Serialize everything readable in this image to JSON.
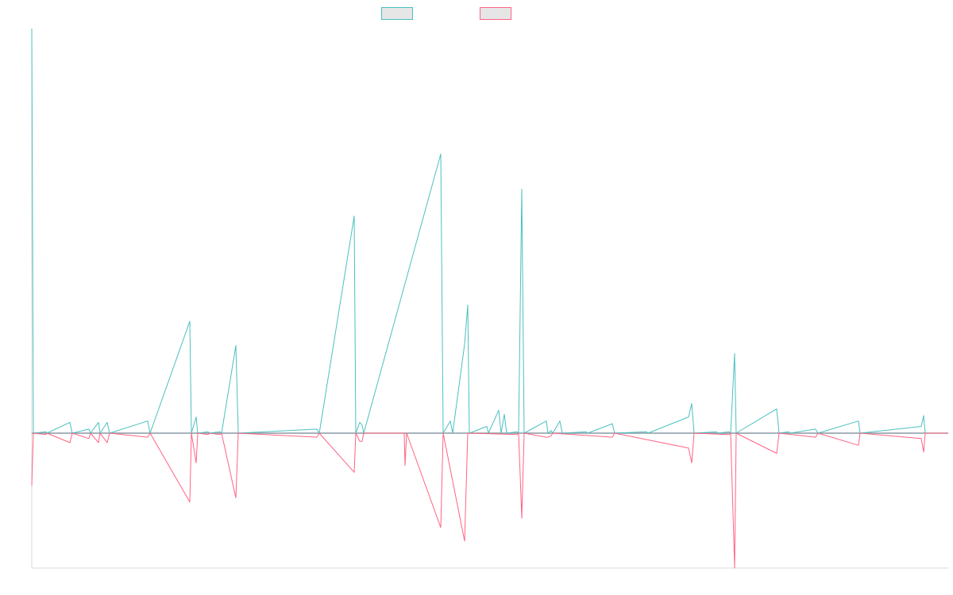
{
  "chart_data": {
    "type": "line",
    "title": "",
    "xlabel": "",
    "ylabel": "",
    "xlim": [
      0,
      1154
    ],
    "ylim": [
      -100,
      300
    ],
    "grid": false,
    "legend_position": "top-center",
    "colors": {
      "series_a": "#4bc0c0",
      "series_b": "#ff6384",
      "axis": "#d9d9d9",
      "baseline": "#8a9aa3"
    },
    "series": [
      {
        "name": "",
        "color": "#4bc0c0",
        "points": [
          [
            0,
            300
          ],
          [
            2,
            0
          ],
          [
            18,
            1
          ],
          [
            19,
            0
          ],
          [
            48,
            8
          ],
          [
            51,
            0
          ],
          [
            72,
            3
          ],
          [
            74,
            0
          ],
          [
            84,
            8
          ],
          [
            86,
            0
          ],
          [
            95,
            8
          ],
          [
            98,
            0
          ],
          [
            146,
            9
          ],
          [
            149,
            0
          ],
          [
            199,
            83
          ],
          [
            201,
            0
          ],
          [
            207,
            12
          ],
          [
            209,
            0
          ],
          [
            222,
            1
          ],
          [
            224,
            0
          ],
          [
            237,
            1
          ],
          [
            239,
            0
          ],
          [
            257,
            65
          ],
          [
            260,
            0
          ],
          [
            359,
            3
          ],
          [
            362,
            0
          ],
          [
            406,
            161
          ],
          [
            408,
            0
          ],
          [
            413,
            8
          ],
          [
            416,
            6
          ],
          [
            418,
            0
          ],
          [
            515,
            207
          ],
          [
            518,
            0
          ],
          [
            527,
            9
          ],
          [
            530,
            0
          ],
          [
            545,
            66
          ],
          [
            549,
            95
          ],
          [
            551,
            0
          ],
          [
            573,
            5
          ],
          [
            575,
            0
          ],
          [
            588,
            17
          ],
          [
            591,
            0
          ],
          [
            595,
            14
          ],
          [
            598,
            0
          ],
          [
            611,
            1
          ],
          [
            613,
            0
          ],
          [
            617,
            181
          ],
          [
            620,
            0
          ],
          [
            648,
            9
          ],
          [
            650,
            0
          ],
          [
            654,
            2
          ],
          [
            656,
            0
          ],
          [
            665,
            9
          ],
          [
            668,
            0
          ],
          [
            698,
            1
          ],
          [
            700,
            0
          ],
          [
            731,
            7
          ],
          [
            734,
            0
          ],
          [
            774,
            1
          ],
          [
            776,
            0
          ],
          [
            827,
            12
          ],
          [
            831,
            22
          ],
          [
            834,
            0
          ],
          [
            862,
            1
          ],
          [
            864,
            0
          ],
          [
            878,
            1
          ],
          [
            880,
            0
          ],
          [
            885,
            59
          ],
          [
            887,
            0
          ],
          [
            938,
            18
          ],
          [
            941,
            0
          ],
          [
            953,
            1
          ],
          [
            955,
            0
          ],
          [
            987,
            3
          ],
          [
            990,
            0
          ],
          [
            1041,
            9
          ],
          [
            1043,
            0
          ],
          [
            1120,
            5
          ],
          [
            1123,
            13
          ],
          [
            1125,
            0
          ],
          [
            1154,
            0
          ]
        ]
      },
      {
        "name": "",
        "color": "#ff6384",
        "points": [
          [
            0,
            -39
          ],
          [
            2,
            0
          ],
          [
            18,
            -1
          ],
          [
            19,
            0
          ],
          [
            48,
            -7
          ],
          [
            51,
            0
          ],
          [
            72,
            -4
          ],
          [
            74,
            0
          ],
          [
            84,
            -7
          ],
          [
            86,
            0
          ],
          [
            95,
            -7
          ],
          [
            98,
            0
          ],
          [
            146,
            -3
          ],
          [
            149,
            0
          ],
          [
            199,
            -51
          ],
          [
            201,
            0
          ],
          [
            207,
            -22
          ],
          [
            209,
            0
          ],
          [
            222,
            -1
          ],
          [
            224,
            0
          ],
          [
            237,
            -1
          ],
          [
            239,
            0
          ],
          [
            257,
            -48
          ],
          [
            260,
            0
          ],
          [
            359,
            -3
          ],
          [
            362,
            0
          ],
          [
            406,
            -29
          ],
          [
            408,
            0
          ],
          [
            413,
            -6
          ],
          [
            416,
            -6
          ],
          [
            418,
            0
          ],
          [
            469,
            0
          ],
          [
            470,
            -24
          ],
          [
            472,
            0
          ],
          [
            515,
            -70
          ],
          [
            518,
            0
          ],
          [
            545,
            -80
          ],
          [
            549,
            0
          ],
          [
            611,
            -1
          ],
          [
            613,
            0
          ],
          [
            617,
            -63
          ],
          [
            620,
            0
          ],
          [
            648,
            -3
          ],
          [
            650,
            -3
          ],
          [
            654,
            -2
          ],
          [
            656,
            0
          ],
          [
            731,
            -3
          ],
          [
            734,
            0
          ],
          [
            827,
            -11
          ],
          [
            831,
            -22
          ],
          [
            834,
            0
          ],
          [
            878,
            -1
          ],
          [
            880,
            0
          ],
          [
            885,
            -100
          ],
          [
            887,
            0
          ],
          [
            938,
            -15
          ],
          [
            941,
            0
          ],
          [
            987,
            -3
          ],
          [
            990,
            0
          ],
          [
            1041,
            -9
          ],
          [
            1043,
            0
          ],
          [
            1120,
            -4
          ],
          [
            1123,
            -14
          ],
          [
            1125,
            0
          ],
          [
            1154,
            0
          ]
        ]
      }
    ]
  }
}
